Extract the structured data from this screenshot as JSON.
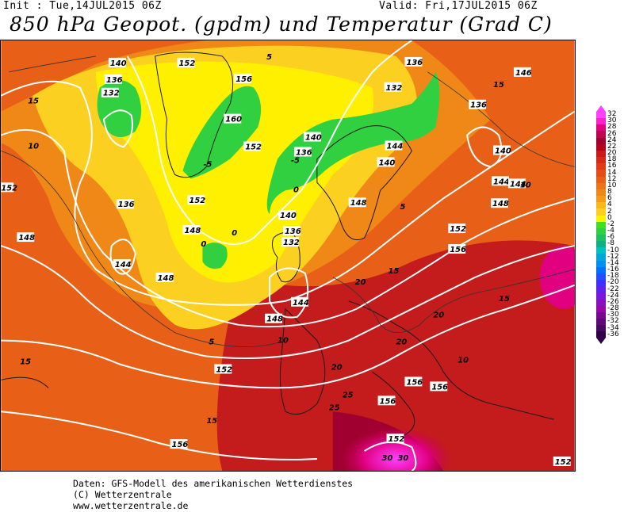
{
  "header": {
    "init": "Init : Tue,14JUL2015 06Z",
    "valid": "Valid: Fri,17JUL2015 06Z",
    "title": "850 hPa Geopot. (gpdm) und Temperatur (Grad C)"
  },
  "colorbar": {
    "labels": [
      "32",
      "30",
      "28",
      "26",
      "24",
      "22",
      "20",
      "18",
      "16",
      "14",
      "12",
      "10",
      "8",
      "6",
      "4",
      "2",
      "0",
      "-2",
      "-4",
      "-6",
      "-8",
      "-10",
      "-12",
      "-14",
      "-16",
      "-18",
      "-20",
      "-22",
      "-24",
      "-26",
      "-28",
      "-30",
      "-32",
      "-34",
      "-36"
    ],
    "colors": [
      "#ff40ff",
      "#ff20c8",
      "#e00080",
      "#c00050",
      "#a00030",
      "#b80020",
      "#cc1818",
      "#d82818",
      "#e03a18",
      "#e44c18",
      "#e86018",
      "#ec7418",
      "#f08818",
      "#f49c18",
      "#f8b818",
      "#fcd020",
      "#fff000",
      "#40e020",
      "#30d040",
      "#20c060",
      "#10b080",
      "#00c0c0",
      "#00a8d8",
      "#0090f0",
      "#0070ff",
      "#2050ff",
      "#4030ff",
      "#6020f0",
      "#7818d8",
      "#8810c0",
      "#9808a8",
      "#780890",
      "#600878",
      "#480860",
      "#300048"
    ]
  },
  "map": {
    "geopotential_labels": [
      "140",
      "136",
      "132",
      "152",
      "156",
      "160",
      "152",
      "136",
      "140",
      "132",
      "136",
      "136",
      "146",
      "140",
      "144",
      "144",
      "140",
      "152",
      "136",
      "148",
      "148",
      "148",
      "144",
      "132",
      "136",
      "148",
      "152",
      "156",
      "152",
      "156",
      "152",
      "156",
      "156",
      "144",
      "148",
      "140",
      "144",
      "148",
      "152",
      "156",
      "152"
    ],
    "temperature_labels": [
      "15",
      "10",
      "5",
      "0",
      "-5",
      "15",
      "20",
      "25",
      "30",
      "0",
      "5",
      "10",
      "15",
      "20",
      "-5",
      "0",
      "5",
      "10",
      "15",
      "20",
      "25",
      "30",
      "15",
      "10",
      "15",
      "20"
    ]
  },
  "footer": {
    "line1": "Daten: GFS-Modell des amerikanischen Wetterdienstes",
    "line2": "(C) Wetterzentrale",
    "line3": "www.wetterzentrale.de"
  }
}
